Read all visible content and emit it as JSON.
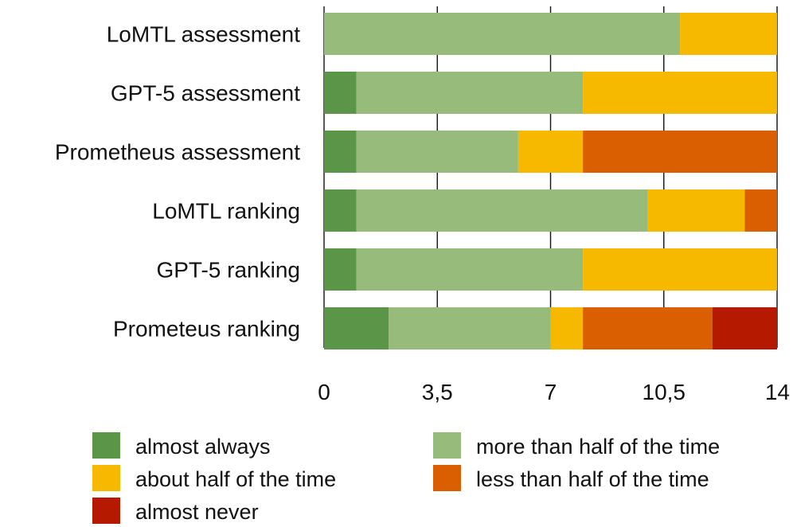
{
  "chart_data": {
    "type": "bar",
    "orientation": "horizontal",
    "stacked": true,
    "categories": [
      "LoMTL assessment",
      "GPT-5 assessment",
      "Prometheus assessment",
      "LoMTL ranking",
      "GPT-5 ranking",
      "Prometeus ranking"
    ],
    "series": [
      {
        "name": "almost always",
        "color": "#5b9548",
        "values": [
          0,
          1,
          1,
          1,
          1,
          2
        ]
      },
      {
        "name": "more than half of the time",
        "color": "#96bb7a",
        "values": [
          11,
          7,
          5,
          9,
          7,
          5
        ]
      },
      {
        "name": "about half of the time",
        "color": "#f6b900",
        "values": [
          3,
          6,
          2,
          3,
          6,
          1
        ]
      },
      {
        "name": "less than half of the time",
        "color": "#d95f00",
        "values": [
          0,
          0,
          6,
          1,
          0,
          4
        ]
      },
      {
        "name": "almost never",
        "color": "#b51a00",
        "values": [
          0,
          0,
          0,
          0,
          0,
          2
        ]
      }
    ],
    "xlim": [
      0,
      14
    ],
    "xticks": [
      0,
      3.5,
      7,
      10.5,
      14
    ],
    "xtick_labels": [
      "0",
      "3,5",
      "7",
      "10,5",
      "14"
    ],
    "grid": "vertical",
    "legend": "bottom"
  }
}
